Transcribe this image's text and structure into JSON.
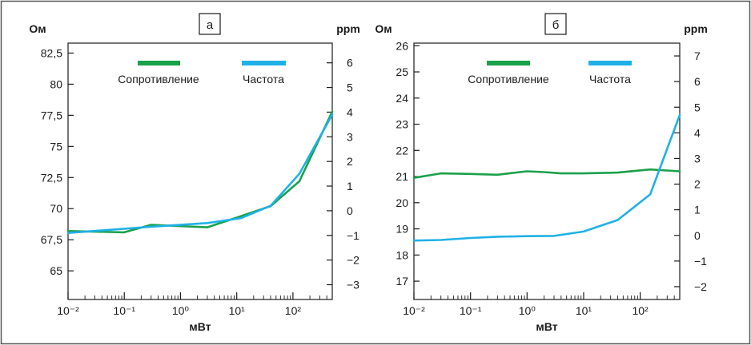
{
  "colors": {
    "resistance": "#1aa14a",
    "frequency": "#1fb1e6",
    "axis": "#1a1a1a",
    "frame": "#555555"
  },
  "chart_data": [
    {
      "type": "line",
      "panel_label": "а",
      "xlabel": "мВт",
      "x_scale": "log",
      "xlim": [
        0.01,
        500
      ],
      "x_ticks": [
        0.01,
        0.1,
        1,
        10,
        100
      ],
      "x_tick_labels": [
        "10⁻²",
        "10⁻¹",
        "10⁰",
        "10¹",
        "10²"
      ],
      "y_left": {
        "label": "Ом",
        "lim": [
          62.7,
          83.3
        ],
        "ticks": [
          65,
          67.5,
          70,
          72.5,
          75,
          77.5,
          80,
          82.5
        ],
        "tick_labels": [
          "65",
          "67,5",
          "70",
          "72,5",
          "75",
          "77,5",
          "80",
          "82,5"
        ]
      },
      "y_right": {
        "label": "ppm",
        "lim": [
          -3.6,
          6.8
        ],
        "ticks": [
          -3,
          -2,
          -1,
          0,
          1,
          2,
          3,
          4,
          5,
          6
        ],
        "tick_labels": [
          "−3",
          "−2",
          "−1",
          "0",
          "1",
          "2",
          "3",
          "4",
          "5",
          "6"
        ]
      },
      "legend_placement": "top",
      "series": [
        {
          "name": "Сопротивление",
          "axis": "left",
          "color": "#1aa14a",
          "x": [
            0.01,
            0.1,
            0.3,
            3,
            12,
            40,
            130,
            500
          ],
          "y": [
            68.2,
            68.1,
            68.7,
            68.5,
            69.4,
            70.2,
            72.2,
            77.8
          ]
        },
        {
          "name": "Частота",
          "axis": "right",
          "color": "#1fb1e6",
          "x": [
            0.01,
            0.3,
            3,
            12,
            40,
            130,
            500
          ],
          "y": [
            -0.9,
            -0.65,
            -0.5,
            -0.3,
            0.2,
            1.5,
            3.9
          ]
        }
      ]
    },
    {
      "type": "line",
      "panel_label": "б",
      "xlabel": "мВт",
      "x_scale": "log",
      "xlim": [
        0.01,
        500
      ],
      "x_ticks": [
        0.01,
        0.1,
        1,
        10,
        100
      ],
      "x_tick_labels": [
        "10⁻²",
        "10⁻¹",
        "10⁰",
        "10¹",
        "10²"
      ],
      "y_left": {
        "label": "Ом",
        "lim": [
          16.3,
          26.1
        ],
        "ticks": [
          17,
          18,
          19,
          20,
          21,
          22,
          23,
          24,
          25,
          26
        ],
        "tick_labels": [
          "17",
          "18",
          "19",
          "20",
          "21",
          "22",
          "23",
          "24",
          "25",
          "26"
        ]
      },
      "y_right": {
        "label": "ppm",
        "lim": [
          -2.5,
          7.5
        ],
        "ticks": [
          -2,
          -1,
          0,
          1,
          2,
          3,
          4,
          5,
          6,
          7
        ],
        "tick_labels": [
          "−2",
          "−1",
          "0",
          "1",
          "2",
          "3",
          "4",
          "5",
          "6",
          "7"
        ]
      },
      "legend_placement": "top",
      "series": [
        {
          "name": "Сопротивление",
          "axis": "left",
          "color": "#1aa14a",
          "x": [
            0.01,
            0.03,
            0.1,
            0.3,
            1,
            2,
            4,
            10,
            40,
            150,
            500
          ],
          "y": [
            20.95,
            21.12,
            21.1,
            21.07,
            21.2,
            21.17,
            21.12,
            21.12,
            21.15,
            21.27,
            21.2
          ]
        },
        {
          "name": "Частота",
          "axis": "right",
          "color": "#1fb1e6",
          "x": [
            0.01,
            0.03,
            0.1,
            0.3,
            1,
            3,
            10,
            40,
            150,
            500
          ],
          "y": [
            -0.2,
            -0.18,
            -0.1,
            -0.05,
            -0.03,
            -0.02,
            0.15,
            0.6,
            1.6,
            4.7
          ]
        }
      ]
    }
  ]
}
